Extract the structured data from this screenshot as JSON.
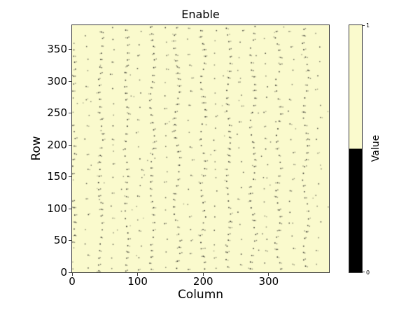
{
  "figure": {
    "background": "#ffffff"
  },
  "chart_data": {
    "type": "heatmap",
    "title": "Enable",
    "xlabel": "Column",
    "ylabel": "Row",
    "xlim": [
      0,
      392
    ],
    "ylim": [
      0,
      388
    ],
    "xticks": [
      0,
      100,
      200,
      300
    ],
    "yticks": [
      0,
      50,
      100,
      150,
      200,
      250,
      300,
      350
    ],
    "grid": false,
    "legend": null,
    "colormap": [
      {
        "value": 0,
        "color": "#000000"
      },
      {
        "value": 1,
        "color": "#fafacd"
      }
    ],
    "background_value": 1,
    "colorbar": {
      "label": "Value",
      "position": "right",
      "ticks": [
        {
          "value": 1,
          "label": "1"
        },
        {
          "value": 0,
          "label": "0"
        }
      ],
      "high_color": "#fafacd",
      "low_color": "#000000",
      "boundary_fraction": 0.5
    },
    "zero_pixel_pattern": {
      "description": "sparse value-0 pixels forming ~11 wavy vertical dotted chains (one dot cluster every ~11 rows), fainter half-density chains midway between them, plus a few stray pixels",
      "dense_chain_start_col": 2,
      "dense_chain_spacing_cols": 39.2,
      "dense_chain_count": 11,
      "dense_row_step": 10.5,
      "sparse_chain_offset_cols": 19.6,
      "sparse_chain_count": 10,
      "sparse_row_step": 20,
      "stray_pixel_count": 55,
      "dot_color": "#141414",
      "seed": 1337
    }
  }
}
